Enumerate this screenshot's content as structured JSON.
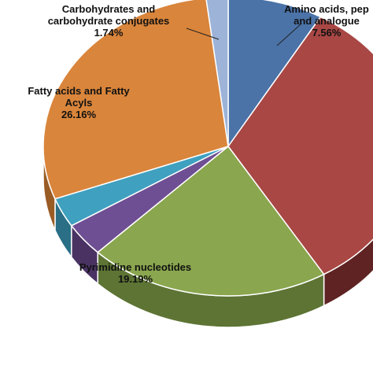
{
  "chart_data": {
    "type": "pie",
    "three_d": true,
    "slices": [
      {
        "label": "Amino acids, peptides, and analogues",
        "label_lines": [
          "Amino acids, pep",
          "and analogue"
        ],
        "value": 7.56,
        "pct_label": "7.56%",
        "color": "#4b73a8",
        "side_color": "#2f4c73"
      },
      {
        "label": "",
        "value": 30.0,
        "pct_label": "",
        "color": "#a84744",
        "side_color": "#5e2322"
      },
      {
        "label": "Pyrimidine nucleotides",
        "label_lines": [
          "Pyrimidine nucleotides"
        ],
        "value": 19.19,
        "pct_label": "19.19%",
        "color": "#8aa64e",
        "side_color": "#5d7434"
      },
      {
        "label": "",
        "value": 3.3,
        "pct_label": "",
        "color": "#6f4f93",
        "side_color": "#4a3363"
      },
      {
        "label": "",
        "value": 2.9,
        "pct_label": "",
        "color": "#3fa0bf",
        "side_color": "#2a6f85"
      },
      {
        "label": "Fatty acids and Fatty Acyls",
        "label_lines": [
          "Fatty acids and Fatty",
          "Acyls"
        ],
        "value": 26.16,
        "pct_label": "26.16%",
        "color": "#d9853b",
        "side_color": "#9a5c25"
      },
      {
        "label": "Carbohydrates and carbohydrate conjugates",
        "label_lines": [
          "Carbohydrates  and",
          "carbohydrate  conjugates"
        ],
        "value": 1.74,
        "pct_label": "1.74%",
        "color": "#9db3d8",
        "side_color": "#6e82a6"
      }
    ],
    "start_angle_deg": -90,
    "legend": "none"
  }
}
